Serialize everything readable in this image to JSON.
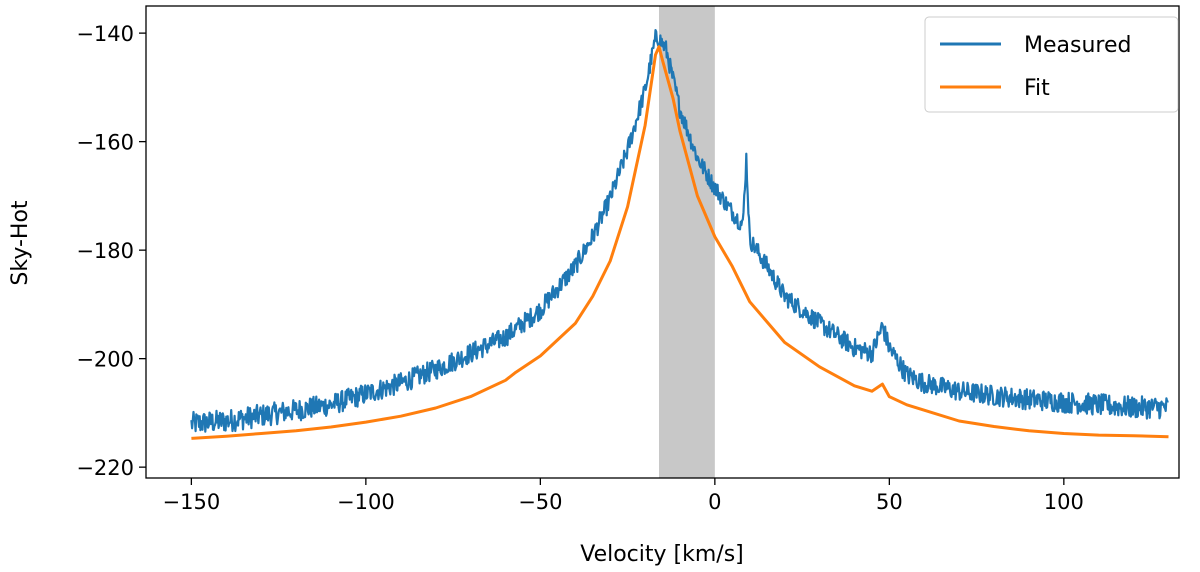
{
  "chart_data": {
    "type": "line",
    "xlabel": "Velocity [km/s]",
    "ylabel": "Sky-Hot",
    "xlim": [
      -163,
      133
    ],
    "ylim": [
      -222,
      -135
    ],
    "xticks": [
      -150,
      -100,
      -50,
      0,
      50,
      100
    ],
    "yticks": [
      -220,
      -200,
      -180,
      -160,
      -140
    ],
    "xtick_labels": [
      "−150",
      "−100",
      "−50",
      "0",
      "50",
      "100"
    ],
    "ytick_labels": [
      "−220",
      "−200",
      "−180",
      "−160",
      "−140"
    ],
    "grid": false,
    "legend_position": "top-right",
    "shaded_band": {
      "x_range": [
        -16,
        0
      ],
      "color": "#c8c8c8"
    },
    "series": [
      {
        "name": "Measured",
        "color": "#1f77b4",
        "noise_amplitude": 1.6,
        "x": [
          -150,
          -140,
          -130,
          -120,
          -110,
          -100,
          -90,
          -80,
          -70,
          -60,
          -50,
          -40,
          -35,
          -30,
          -25,
          -20,
          -17,
          -16,
          -14,
          -10,
          -5,
          0,
          5,
          8,
          9,
          10,
          15,
          20,
          30,
          40,
          45,
          48,
          50,
          55,
          60,
          70,
          80,
          90,
          100,
          110,
          120,
          130
        ],
        "y": [
          -212,
          -211.5,
          -210.5,
          -209.5,
          -208.5,
          -206.5,
          -204.5,
          -202,
          -199,
          -196,
          -191,
          -183,
          -177.5,
          -170.5,
          -161.5,
          -150.5,
          -141,
          -141,
          -143,
          -154,
          -163,
          -168.5,
          -173,
          -175.5,
          -163,
          -178,
          -183,
          -188.5,
          -193.5,
          -198,
          -199,
          -194,
          -198,
          -203,
          -204.5,
          -206,
          -206.8,
          -207.5,
          -208,
          -208.5,
          -209,
          -209
        ]
      },
      {
        "name": "Fit",
        "color": "#ff7f0e",
        "x": [
          -150,
          -140,
          -130,
          -120,
          -110,
          -100,
          -90,
          -80,
          -70,
          -60,
          -57,
          -50,
          -40,
          -35,
          -30,
          -25,
          -20,
          -17,
          -16,
          -15,
          -12,
          -10,
          -5,
          0,
          5,
          10,
          20,
          30,
          40,
          45,
          48,
          50,
          55,
          60,
          70,
          80,
          90,
          100,
          110,
          120,
          130
        ],
        "y": [
          -214.7,
          -214.3,
          -213.8,
          -213.3,
          -212.6,
          -211.7,
          -210.6,
          -209.1,
          -207,
          -204,
          -202.5,
          -199.5,
          -193.5,
          -188.5,
          -182,
          -172,
          -157,
          -144,
          -142.5,
          -145,
          -152,
          -158,
          -170,
          -177.5,
          -183,
          -189.5,
          -197,
          -201.5,
          -205,
          -206,
          -204.7,
          -207,
          -208.5,
          -209.5,
          -211.5,
          -212.5,
          -213.3,
          -213.8,
          -214.1,
          -214.2,
          -214.4
        ]
      }
    ]
  }
}
